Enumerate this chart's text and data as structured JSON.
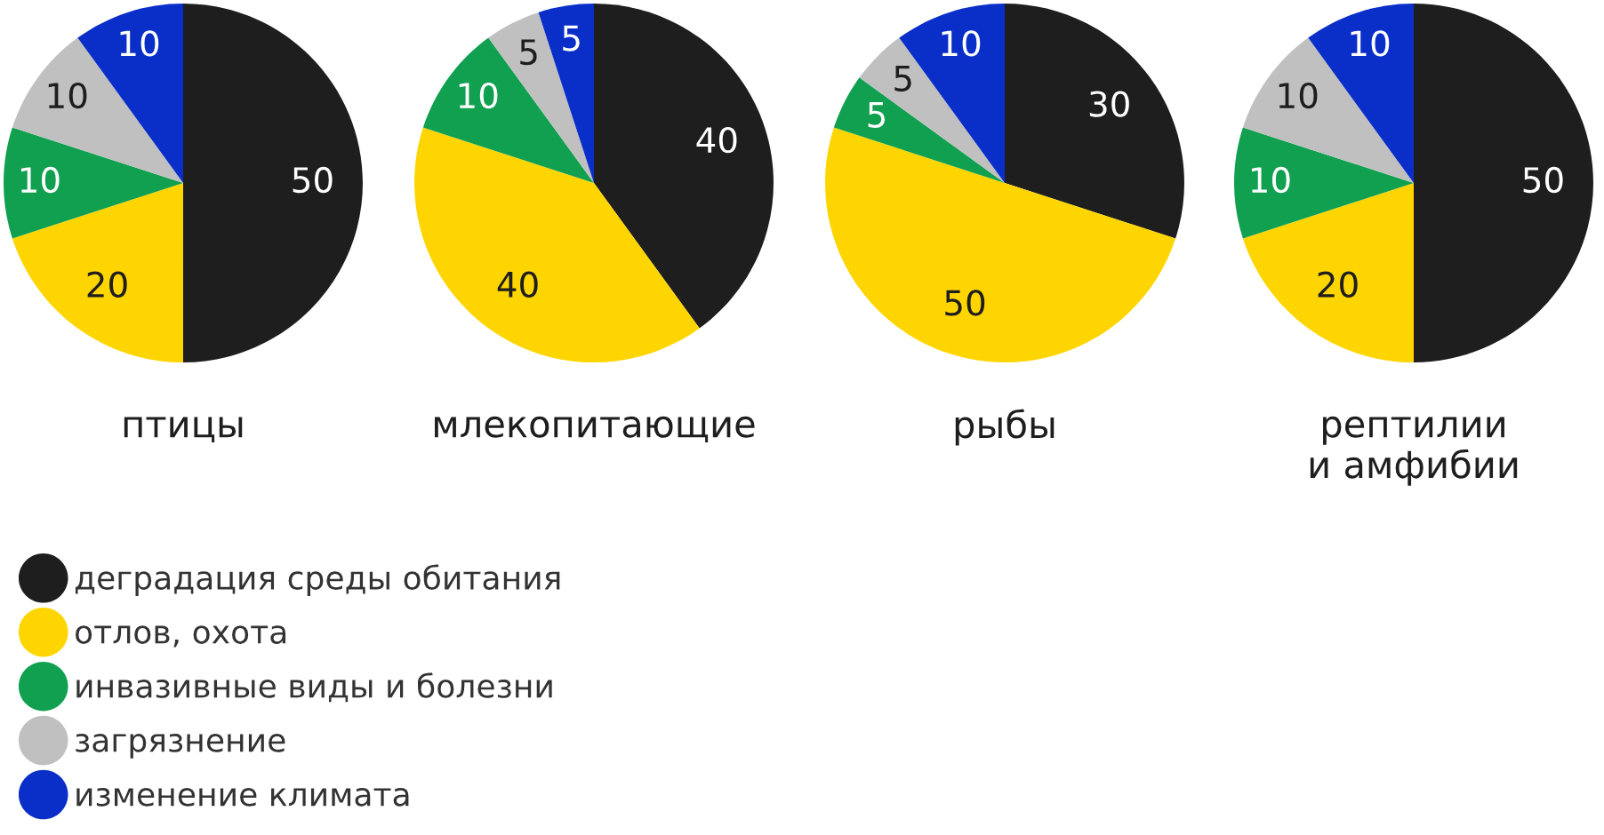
{
  "chart_data": [
    {
      "type": "pie",
      "title": "птицы",
      "categories": [
        "деградация среды обитания",
        "отлов, охота",
        "инвазивные виды и болезни",
        "загрязнение",
        "изменение климата"
      ],
      "values": [
        50,
        20,
        10,
        10,
        10
      ],
      "colors": [
        "#1e1e1e",
        "#ffd500",
        "#10a050",
        "#c0c0c0",
        "#0a2fc8"
      ],
      "data_labels": true,
      "legend": "bottom"
    },
    {
      "type": "pie",
      "title": "млекопитающие",
      "categories": [
        null,
        null,
        null,
        null,
        null
      ],
      "values": [
        40,
        40,
        10,
        5,
        5
      ],
      "colors": [
        "#1e1e1e",
        "#ffd500",
        "#10a050",
        "#c0c0c0",
        "#0a2fc8"
      ],
      "data_labels": true
    },
    {
      "type": "pie",
      "title": "рыбы",
      "categories": [
        null,
        null,
        null,
        null,
        null
      ],
      "values": [
        30,
        50,
        5,
        5,
        10
      ],
      "colors": [
        "#1e1e1e",
        "#ffd500",
        "#10a050",
        "#c0c0c0",
        "#0a2fc8"
      ],
      "data_labels": true
    },
    {
      "type": "pie",
      "title": "рептилии\nи амфибии",
      "categories": [
        null,
        null,
        null,
        null,
        null
      ],
      "values": [
        50,
        20,
        10,
        10,
        10
      ],
      "colors": [
        "#1e1e1e",
        "#ffd500",
        "#10a050",
        "#c0c0c0",
        "#0a2fc8"
      ],
      "data_labels": true
    }
  ]
}
